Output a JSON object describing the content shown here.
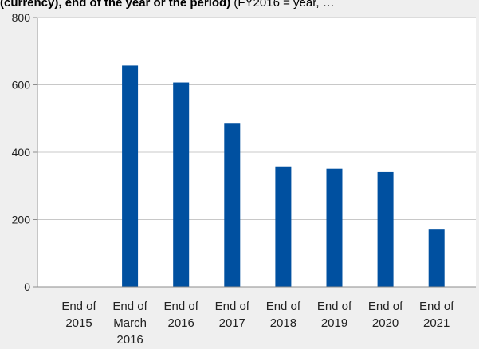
{
  "chart_data": {
    "type": "bar",
    "title": "",
    "title_fragment_bold": "(currency), end of the year or the period)",
    "title_fragment_normal": " (FY2016 = year, …",
    "xlabel": "",
    "ylabel": "",
    "categories": [
      [
        "End of",
        "2015"
      ],
      [
        "End of",
        "March",
        "2016"
      ],
      [
        "End of",
        "2016"
      ],
      [
        "End of",
        "2017"
      ],
      [
        "End of",
        "2018"
      ],
      [
        "End of",
        "2019"
      ],
      [
        "End of",
        "2020"
      ],
      [
        "End of",
        "2021"
      ]
    ],
    "values": [
      0,
      657,
      607,
      487,
      358,
      351,
      341,
      170
    ],
    "ylim": [
      0,
      800
    ],
    "yticks": [
      0,
      200,
      400,
      600,
      800
    ],
    "grid": true,
    "colors": {
      "bar": "#0050a0",
      "grid": "#c8c8c8",
      "axis": "#8c8c8c",
      "background": "#efefef",
      "plot_background": "#ffffff",
      "text": "#222222"
    }
  }
}
